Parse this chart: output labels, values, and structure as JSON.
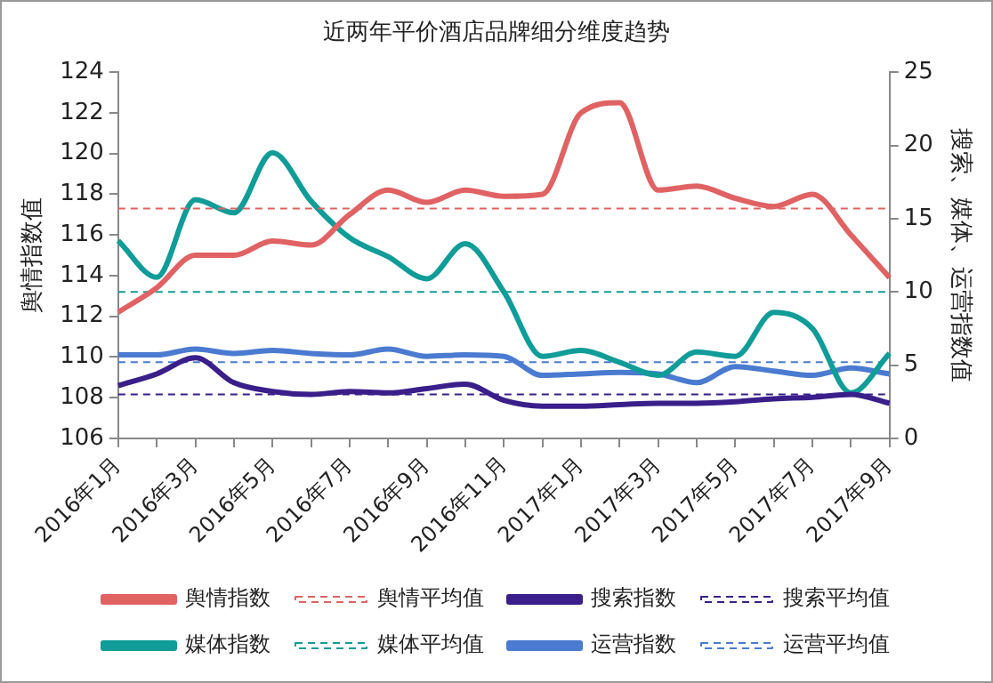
{
  "chart_data": {
    "type": "line",
    "title": "近两年平价酒店品牌细分维度趋势",
    "ylabel": "舆情指数值",
    "y2label": "搜索、媒体、运营指数值",
    "categories": [
      "2016年1月",
      null,
      "2016年3月",
      null,
      "2016年5月",
      null,
      "2016年7月",
      null,
      "2016年9月",
      null,
      "2016年11月",
      null,
      "2017年1月",
      null,
      "2017年3月",
      null,
      "2017年5月",
      null,
      "2017年7月",
      null,
      "2017年9月"
    ],
    "series": [
      {
        "name": "舆情指数",
        "color": "#e06262",
        "values": [
          112.2,
          113.4,
          115.0,
          115.0,
          115.7,
          115.5,
          117.0,
          118.2,
          117.6,
          118.2,
          117.9,
          118.0,
          122.0,
          122.5,
          118.2,
          118.4,
          117.8,
          117.4,
          118.0,
          116.0,
          113.9
        ]
      },
      {
        "name": "舆情平均值",
        "color": "#e06262",
        "line_style": "dashed",
        "values": [
          117.3,
          117.3,
          117.3,
          117.3,
          117.3,
          117.3,
          117.3,
          117.3,
          117.3,
          117.3,
          117.3,
          117.3,
          117.3,
          117.3,
          117.3,
          117.3,
          117.3,
          117.3,
          117.3,
          117.3,
          117.3
        ]
      },
      {
        "name": "搜索指数",
        "color": "#3a1f8a",
        "axis": "y2",
        "values": [
          3.6,
          4.4,
          5.5,
          3.8,
          3.2,
          3.0,
          3.2,
          3.1,
          3.4,
          3.7,
          2.6,
          2.2,
          2.2,
          2.3,
          2.4,
          2.4,
          2.5,
          2.7,
          2.8,
          3.0,
          2.4
        ]
      },
      {
        "name": "搜索平均值",
        "color": "#3a1f8a",
        "axis": "y2",
        "line_style": "dashed",
        "values": [
          3.0,
          3.0,
          3.0,
          3.0,
          3.0,
          3.0,
          3.0,
          3.0,
          3.0,
          3.0,
          3.0,
          3.0,
          3.0,
          3.0,
          3.0,
          3.0,
          3.0,
          3.0,
          3.0,
          3.0,
          3.0
        ]
      },
      {
        "name": "媒体指数",
        "color": "#109c98",
        "axis": "y2",
        "values": [
          13.5,
          11.0,
          16.3,
          15.4,
          19.5,
          16.2,
          13.7,
          12.4,
          10.9,
          13.3,
          10.0,
          5.6,
          6.0,
          5.2,
          4.3,
          5.9,
          5.6,
          8.6,
          7.5,
          3.1,
          5.8
        ]
      },
      {
        "name": "媒体平均值",
        "color": "#109c98",
        "axis": "y2",
        "line_style": "dashed",
        "values": [
          10.0,
          10.0,
          10.0,
          10.0,
          10.0,
          10.0,
          10.0,
          10.0,
          10.0,
          10.0,
          10.0,
          10.0,
          10.0,
          10.0,
          10.0,
          10.0,
          10.0,
          10.0,
          10.0,
          10.0,
          10.0
        ]
      },
      {
        "name": "运营指数",
        "color": "#4a7bd0",
        "axis": "y2",
        "values": [
          5.7,
          5.7,
          6.1,
          5.8,
          6.0,
          5.8,
          5.7,
          6.1,
          5.6,
          5.7,
          5.6,
          4.3,
          4.4,
          4.5,
          4.4,
          3.8,
          4.9,
          4.6,
          4.3,
          4.8,
          4.4
        ]
      },
      {
        "name": "运营平均值",
        "color": "#4a7bd0",
        "axis": "y2",
        "line_style": "dashed",
        "values": [
          5.2,
          5.2,
          5.2,
          5.2,
          5.2,
          5.2,
          5.2,
          5.2,
          5.2,
          5.2,
          5.2,
          5.2,
          5.2,
          5.2,
          5.2,
          5.2,
          5.2,
          5.2,
          5.2,
          5.2,
          5.2
        ]
      }
    ],
    "ylim": [
      106,
      124
    ],
    "yticks": [
      106,
      108,
      110,
      112,
      114,
      116,
      118,
      120,
      122,
      124
    ],
    "y2lim": [
      0,
      25
    ],
    "y2ticks": [
      0,
      5,
      10,
      15,
      20,
      25
    ],
    "grid": false,
    "legend": "bottom",
    "marker": "none",
    "line_style": "solid"
  }
}
